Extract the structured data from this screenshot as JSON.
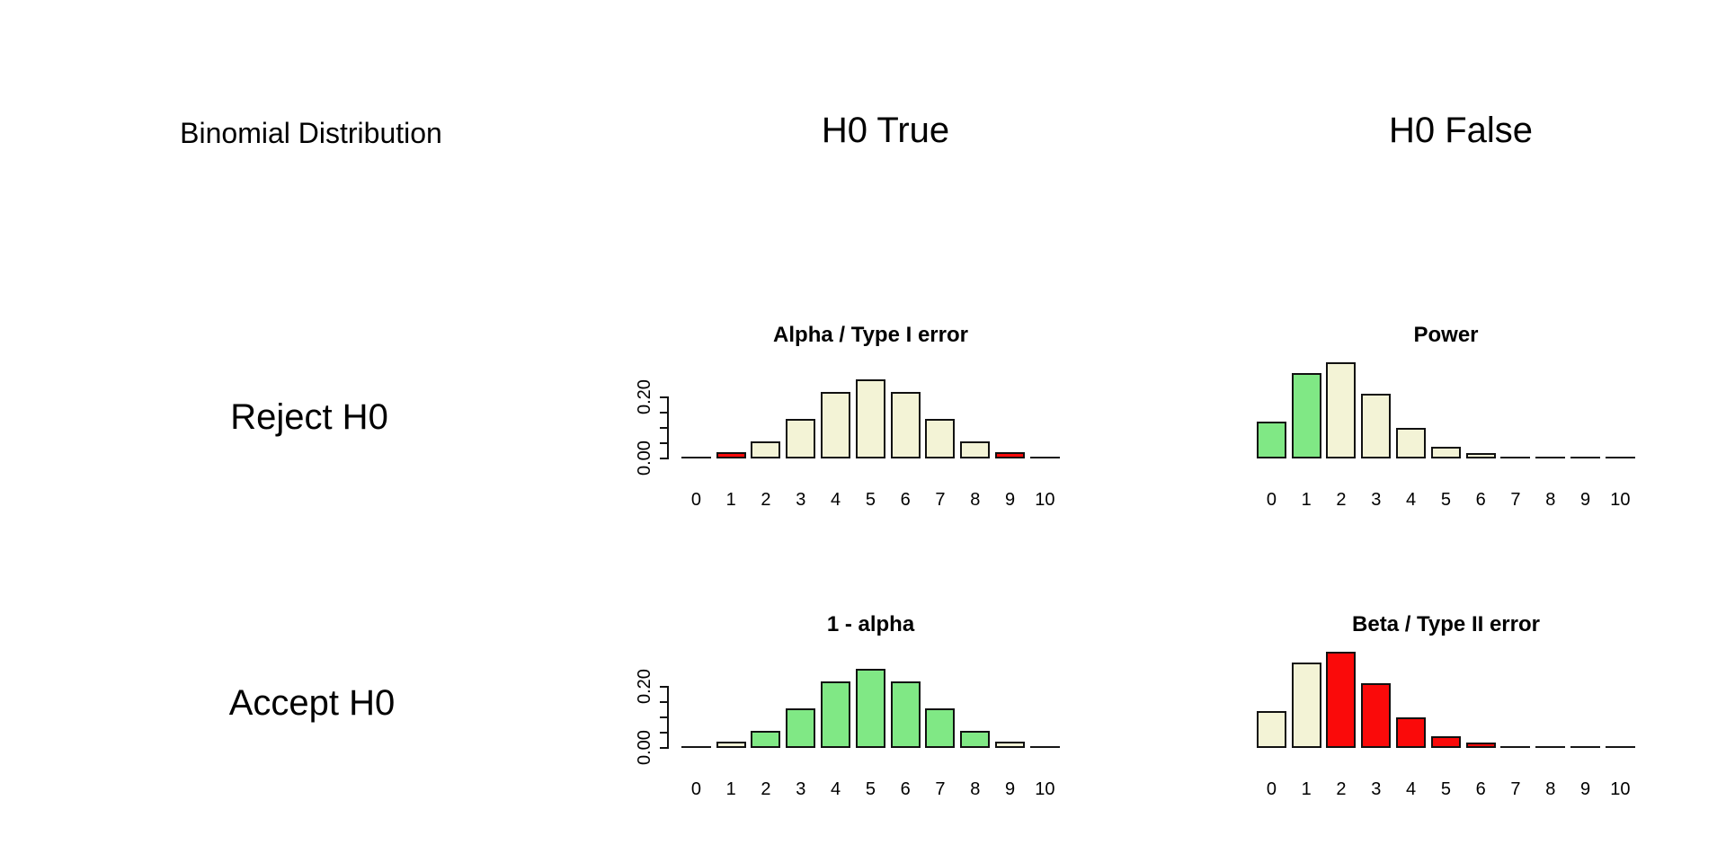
{
  "title_labels": {
    "corner": "Binomial Distribution",
    "col_h0_true": "H0 True",
    "col_h0_false": "H0 False",
    "row_reject": "Reject H0",
    "row_accept": "Accept H0"
  },
  "colors": {
    "beige": "#f3f3d6",
    "green": "#80e885",
    "red": "#fa0a0a",
    "bar_border": "#111111",
    "flat_line": "#161616",
    "text": "#000000",
    "background": "#ffffff"
  },
  "chart_data": [
    {
      "type": "bar",
      "title": "Alpha / Type I error",
      "grid_position": "row Reject H0 / column H0 True",
      "categories": [
        "0",
        "1",
        "2",
        "3",
        "4",
        "5",
        "6",
        "7",
        "8",
        "9",
        "10"
      ],
      "values": [
        0.001,
        0.0098,
        0.0439,
        0.1172,
        0.2051,
        0.2461,
        0.2051,
        0.1172,
        0.0439,
        0.0098,
        0.001
      ],
      "bar_colors": [
        "red",
        "red",
        "beige",
        "beige",
        "beige",
        "beige",
        "beige",
        "beige",
        "beige",
        "red",
        "red"
      ],
      "ylim": [
        0,
        0.25
      ],
      "grid": false,
      "y_axis": {
        "show": true,
        "tick_count": 5,
        "tick_min": 0.0,
        "tick_max": 0.2,
        "tick_labels_shown": [
          "0.00",
          "0.20"
        ]
      }
    },
    {
      "type": "bar",
      "title": "Power",
      "grid_position": "row Reject H0 / column H0 False",
      "categories": [
        "0",
        "1",
        "2",
        "3",
        "4",
        "5",
        "6",
        "7",
        "8",
        "9",
        "10"
      ],
      "values": [
        0.1074,
        0.2684,
        0.302,
        0.2013,
        0.0881,
        0.0264,
        0.0055,
        0.0008,
        0.0001,
        0.0,
        0.0
      ],
      "bar_colors": [
        "green",
        "green",
        "beige",
        "beige",
        "beige",
        "beige",
        "beige",
        "beige",
        "beige",
        "green",
        "green"
      ],
      "ylim": [
        0,
        0.25
      ],
      "grid": false,
      "y_axis": {
        "show": false,
        "tick_count": 0,
        "tick_min": 0.0,
        "tick_max": 0.2,
        "tick_labels_shown": []
      }
    },
    {
      "type": "bar",
      "title": "1 - alpha",
      "grid_position": "row Accept H0 / column H0 True",
      "categories": [
        "0",
        "1",
        "2",
        "3",
        "4",
        "5",
        "6",
        "7",
        "8",
        "9",
        "10"
      ],
      "values": [
        0.001,
        0.0098,
        0.0439,
        0.1172,
        0.2051,
        0.2461,
        0.2051,
        0.1172,
        0.0439,
        0.0098,
        0.001
      ],
      "bar_colors": [
        "beige",
        "beige",
        "green",
        "green",
        "green",
        "green",
        "green",
        "green",
        "green",
        "beige",
        "beige"
      ],
      "ylim": [
        0,
        0.25
      ],
      "grid": false,
      "y_axis": {
        "show": true,
        "tick_count": 5,
        "tick_min": 0.0,
        "tick_max": 0.2,
        "tick_labels_shown": [
          "0.00",
          "0.20"
        ]
      }
    },
    {
      "type": "bar",
      "title": "Beta / Type II error",
      "grid_position": "row Accept H0 / column H0 False",
      "categories": [
        "0",
        "1",
        "2",
        "3",
        "4",
        "5",
        "6",
        "7",
        "8",
        "9",
        "10"
      ],
      "values": [
        0.1074,
        0.2684,
        0.302,
        0.2013,
        0.0881,
        0.0264,
        0.0055,
        0.0008,
        0.0001,
        0.0,
        0.0
      ],
      "bar_colors": [
        "beige",
        "beige",
        "red",
        "red",
        "red",
        "red",
        "red",
        "red",
        "red",
        "beige",
        "beige"
      ],
      "ylim": [
        0,
        0.25
      ],
      "grid": false,
      "y_axis": {
        "show": false,
        "tick_count": 0,
        "tick_min": 0.0,
        "tick_max": 0.2,
        "tick_labels_shown": []
      }
    }
  ]
}
